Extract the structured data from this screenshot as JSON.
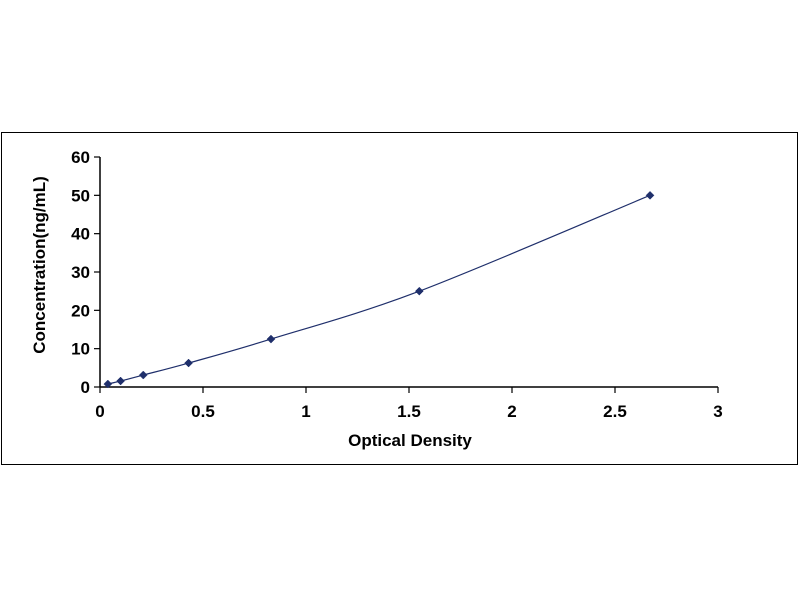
{
  "chart_data": {
    "type": "scatter",
    "xlabel": "Optical Density",
    "ylabel": "Concentration(ng/mL)",
    "xlim": [
      0,
      3
    ],
    "ylim": [
      0,
      60
    ],
    "xticks": [
      "0",
      "0.5",
      "1",
      "1.5",
      "2",
      "2.5",
      "3"
    ],
    "yticks": [
      "0",
      "10",
      "20",
      "30",
      "40",
      "50",
      "60"
    ],
    "grid": false,
    "legend": "none",
    "series": [
      {
        "x": [
          0.038,
          0.1,
          0.21,
          0.43,
          0.83,
          1.55,
          2.67
        ],
        "y": [
          0.78,
          1.56,
          3.12,
          6.25,
          12.5,
          25,
          50
        ],
        "marker": "diamond",
        "trendline": "polynomial"
      }
    ],
    "colors": {
      "marker": "#1f2f6b",
      "line": "#1f2f6b",
      "axes": "#000000"
    }
  }
}
